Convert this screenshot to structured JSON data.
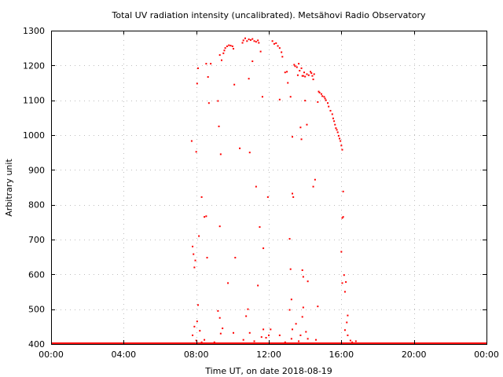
{
  "chart_data": {
    "type": "scatter",
    "title": "Total UV radiation intensity (uncalibrated). Metsähovi Radio Observatory",
    "xlabel": "Time UT, on date 2018-08-19",
    "ylabel": "Arbitrary unit",
    "xlim": [
      0,
      24
    ],
    "ylim": [
      400,
      1300
    ],
    "xticks": [
      0,
      4,
      8,
      12,
      16,
      20,
      24
    ],
    "xtick_labels": [
      "00:00",
      "04:00",
      "08:00",
      "12:00",
      "16:00",
      "20:00",
      "00:00"
    ],
    "yticks": [
      400,
      500,
      600,
      700,
      800,
      900,
      1000,
      1100,
      1200,
      1300
    ],
    "ytick_labels": [
      "400",
      "500",
      "600",
      "700",
      "800",
      "900",
      "1000",
      "1100",
      "1200",
      "1300"
    ],
    "grid": true,
    "series": [
      {
        "color": "#ff0000",
        "baseline": {
          "y": 400,
          "x_range": [
            0,
            24
          ]
        },
        "points": [
          [
            7.75,
            983
          ],
          [
            7.8,
            680
          ],
          [
            7.85,
            658
          ],
          [
            7.9,
            620
          ],
          [
            7.95,
            640
          ],
          [
            8.0,
            952
          ],
          [
            8.05,
            1148
          ],
          [
            8.1,
            1192
          ],
          [
            8.15,
            710
          ],
          [
            8.3,
            822
          ],
          [
            8.45,
            765
          ],
          [
            8.55,
            767
          ],
          [
            8.6,
            648
          ],
          [
            8.55,
            1205
          ],
          [
            8.65,
            1167
          ],
          [
            8.7,
            1092
          ],
          [
            8.8,
            1205
          ],
          [
            9.2,
            1098
          ],
          [
            9.25,
            1025
          ],
          [
            9.3,
            738
          ],
          [
            9.35,
            945
          ],
          [
            9.3,
            1230
          ],
          [
            9.4,
            1215
          ],
          [
            9.5,
            1235
          ],
          [
            9.55,
            1243
          ],
          [
            9.6,
            1250
          ],
          [
            9.7,
            1255
          ],
          [
            9.8,
            1258
          ],
          [
            9.9,
            1257
          ],
          [
            10.0,
            1255
          ],
          [
            10.05,
            1248
          ],
          [
            9.75,
            575
          ],
          [
            10.1,
            1145
          ],
          [
            10.15,
            648
          ],
          [
            10.4,
            962
          ],
          [
            10.55,
            1265
          ],
          [
            10.6,
            1272
          ],
          [
            10.7,
            1278
          ],
          [
            10.8,
            1270
          ],
          [
            10.9,
            1275
          ],
          [
            11.0,
            1273
          ],
          [
            11.1,
            1276
          ],
          [
            11.2,
            1270
          ],
          [
            11.3,
            1268
          ],
          [
            11.4,
            1272
          ],
          [
            11.45,
            1265
          ],
          [
            10.9,
            1162
          ],
          [
            10.95,
            950
          ],
          [
            11.1,
            1212
          ],
          [
            11.3,
            852
          ],
          [
            11.4,
            568
          ],
          [
            11.5,
            736
          ],
          [
            11.55,
            1240
          ],
          [
            11.65,
            1110
          ],
          [
            11.7,
            675
          ],
          [
            11.95,
            822
          ],
          [
            12.2,
            1270
          ],
          [
            12.3,
            1262
          ],
          [
            12.4,
            1264
          ],
          [
            12.5,
            1256
          ],
          [
            12.6,
            1250
          ],
          [
            12.7,
            1238
          ],
          [
            12.75,
            1225
          ],
          [
            12.6,
            1102
          ],
          [
            12.9,
            1180
          ],
          [
            13.0,
            1182
          ],
          [
            13.05,
            1150
          ],
          [
            13.2,
            1110
          ],
          [
            13.15,
            702
          ],
          [
            13.2,
            615
          ],
          [
            13.25,
            528
          ],
          [
            13.3,
            995
          ],
          [
            13.35,
            822
          ],
          [
            13.3,
            832
          ],
          [
            13.4,
            1202
          ],
          [
            13.45,
            1198
          ],
          [
            13.55,
            1195
          ],
          [
            13.65,
            1205
          ],
          [
            13.7,
            1185
          ],
          [
            13.8,
            1192
          ],
          [
            13.85,
            1170
          ],
          [
            13.9,
            1170
          ],
          [
            13.95,
            1180
          ],
          [
            14.0,
            1168
          ],
          [
            14.1,
            1175
          ],
          [
            14.2,
            1172
          ],
          [
            14.3,
            1182
          ],
          [
            14.35,
            1178
          ],
          [
            14.4,
            1170
          ],
          [
            14.45,
            1160
          ],
          [
            14.5,
            1175
          ],
          [
            13.6,
            1172
          ],
          [
            13.75,
            1022
          ],
          [
            13.8,
            988
          ],
          [
            13.85,
            612
          ],
          [
            13.9,
            593
          ],
          [
            14.0,
            1099
          ],
          [
            14.1,
            1030
          ],
          [
            14.15,
            580
          ],
          [
            14.45,
            852
          ],
          [
            14.55,
            872
          ],
          [
            14.7,
            508
          ],
          [
            14.75,
            1125
          ],
          [
            14.8,
            1122
          ],
          [
            14.9,
            1118
          ],
          [
            14.95,
            1112
          ],
          [
            15.05,
            1110
          ],
          [
            15.1,
            1105
          ],
          [
            15.15,
            1100
          ],
          [
            15.25,
            1092
          ],
          [
            15.3,
            1082
          ],
          [
            15.4,
            1070
          ],
          [
            15.5,
            1060
          ],
          [
            15.55,
            1048
          ],
          [
            15.6,
            1040
          ],
          [
            15.65,
            1030
          ],
          [
            15.7,
            1020
          ],
          [
            15.75,
            1015
          ],
          [
            15.8,
            1008
          ],
          [
            15.85,
            998
          ],
          [
            15.9,
            990
          ],
          [
            15.95,
            983
          ],
          [
            16.0,
            970
          ],
          [
            16.05,
            958
          ],
          [
            14.7,
            1095
          ],
          [
            16.1,
            838
          ],
          [
            16.1,
            765
          ],
          [
            16.05,
            762
          ],
          [
            16.0,
            665
          ],
          [
            16.15,
            598
          ],
          [
            16.2,
            550
          ],
          [
            16.25,
            578
          ],
          [
            16.3,
            462
          ],
          [
            16.35,
            482
          ],
          [
            16.05,
            575
          ],
          [
            7.8,
            425
          ],
          [
            7.9,
            450
          ],
          [
            8.0,
            410
          ],
          [
            8.05,
            465
          ],
          [
            8.1,
            512
          ],
          [
            8.2,
            438
          ],
          [
            8.3,
            405
          ],
          [
            8.45,
            412
          ],
          [
            8.6,
            402
          ],
          [
            9.0,
            405
          ],
          [
            9.2,
            495
          ],
          [
            9.3,
            475
          ],
          [
            9.35,
            430
          ],
          [
            9.45,
            445
          ],
          [
            9.85,
            402
          ],
          [
            10.05,
            432
          ],
          [
            10.6,
            412
          ],
          [
            10.75,
            480
          ],
          [
            10.85,
            500
          ],
          [
            10.95,
            432
          ],
          [
            11.2,
            408
          ],
          [
            11.4,
            402
          ],
          [
            11.6,
            420
          ],
          [
            11.7,
            442
          ],
          [
            11.85,
            418
          ],
          [
            12.0,
            425
          ],
          [
            12.1,
            442
          ],
          [
            12.35,
            402
          ],
          [
            12.6,
            425
          ],
          [
            12.9,
            405
          ],
          [
            13.15,
            498
          ],
          [
            13.25,
            415
          ],
          [
            13.3,
            442
          ],
          [
            13.5,
            458
          ],
          [
            13.65,
            408
          ],
          [
            13.75,
            425
          ],
          [
            13.85,
            478
          ],
          [
            13.9,
            505
          ],
          [
            14.05,
            435
          ],
          [
            14.15,
            415
          ],
          [
            14.4,
            402
          ],
          [
            14.6,
            412
          ],
          [
            16.2,
            440
          ],
          [
            16.35,
            425
          ],
          [
            16.5,
            410
          ],
          [
            16.6,
            405
          ],
          [
            16.7,
            402
          ],
          [
            16.8,
            408
          ]
        ]
      }
    ]
  }
}
